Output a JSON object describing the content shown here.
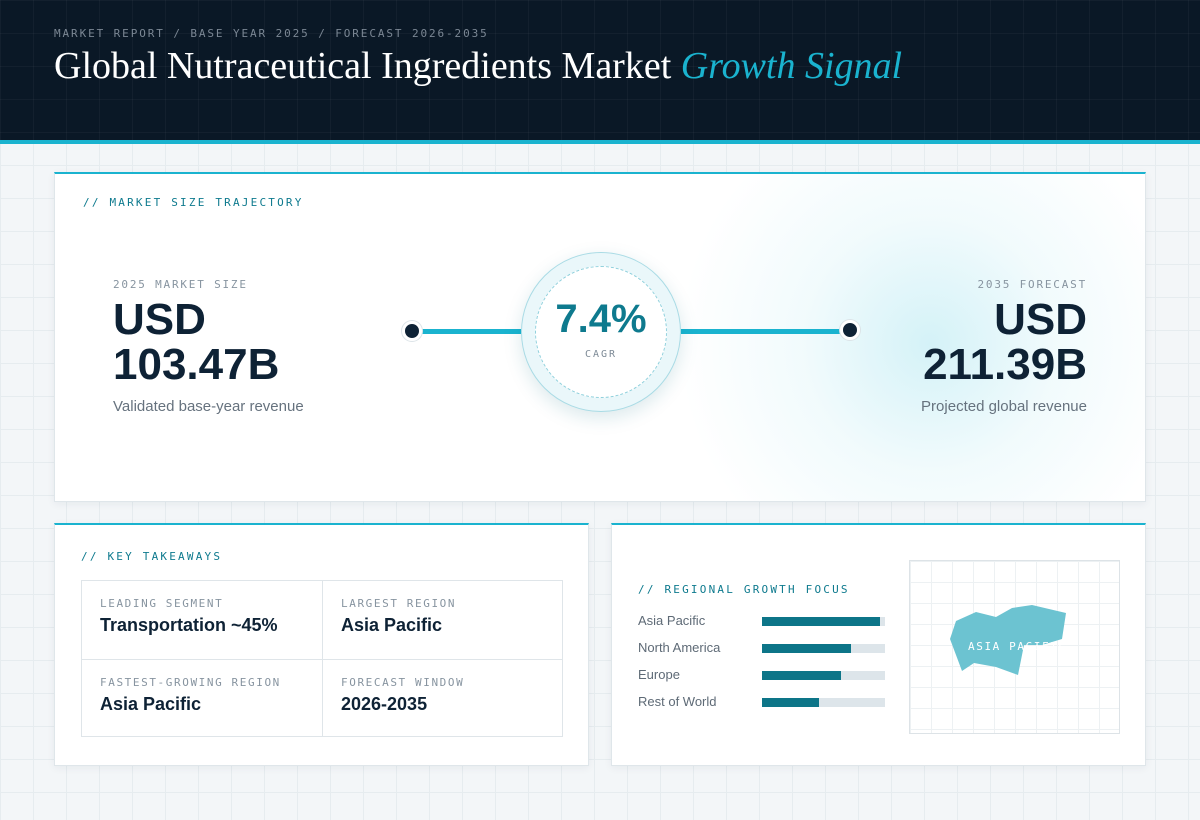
{
  "header": {
    "eyebrow": "MARKET REPORT / BASE YEAR 2025 / FORECAST 2026-2035",
    "title_main": "Global Nutraceutical Ingredients Market",
    "title_accent": "Growth Signal"
  },
  "trajectory": {
    "label": "// MARKET SIZE TRAJECTORY",
    "base": {
      "caption": "2025 MARKET SIZE",
      "currency": "USD",
      "value": "103.47B",
      "subtitle": "Validated base-year revenue"
    },
    "cagr": {
      "value": "7.4%",
      "label": "CAGR"
    },
    "forecast": {
      "caption": "2035 FORECAST",
      "currency": "USD",
      "value": "211.39B",
      "subtitle": "Projected global revenue"
    }
  },
  "takeaways": {
    "label": "// KEY TAKEAWAYS",
    "items": [
      {
        "caption": "LEADING SEGMENT",
        "value": "Transportation ~45%"
      },
      {
        "caption": "LARGEST REGION",
        "value": "Asia Pacific"
      },
      {
        "caption": "FASTEST-GROWING REGION",
        "value": "Asia Pacific"
      },
      {
        "caption": "FORECAST WINDOW",
        "value": "2026-2035"
      }
    ]
  },
  "regional": {
    "label": "// REGIONAL GROWTH FOCUS",
    "regions": [
      {
        "name": "Asia Pacific",
        "level": 0.96
      },
      {
        "name": "North America",
        "level": 0.72
      },
      {
        "name": "Europe",
        "level": 0.64
      },
      {
        "name": "Rest of World",
        "level": 0.46
      }
    ],
    "map_label": "ASIA PACIFIC"
  },
  "colors": {
    "accent": "#1ab3cf",
    "dark": "#0a1826",
    "bar_fill": "#0d7588",
    "map_fill": "#6cc3d1"
  }
}
